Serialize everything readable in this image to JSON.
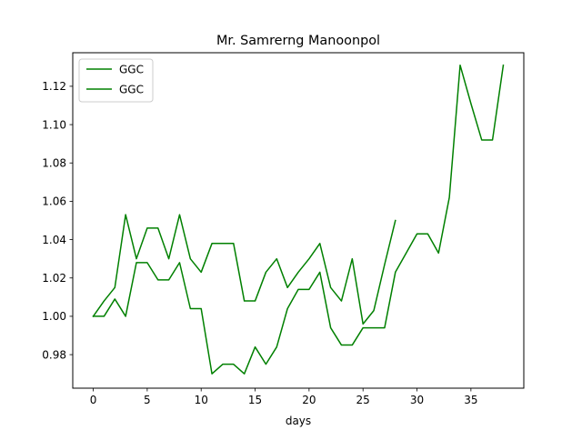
{
  "chart_data": {
    "type": "line",
    "title": "Mr. Samrerng Manoonpol",
    "xlabel": "days",
    "ylabel": "",
    "xlim": [
      -1.9,
      39.9
    ],
    "ylim": [
      0.9625,
      1.1375
    ],
    "xticks": [
      0,
      5,
      10,
      15,
      20,
      25,
      30,
      35
    ],
    "xtick_labels": [
      "0",
      "5",
      "10",
      "15",
      "20",
      "25",
      "30",
      "35"
    ],
    "yticks": [
      0.98,
      1.0,
      1.02,
      1.04,
      1.06,
      1.08,
      1.1,
      1.12
    ],
    "ytick_labels": [
      "0.98",
      "1.00",
      "1.02",
      "1.04",
      "1.06",
      "1.08",
      "1.10",
      "1.12"
    ],
    "grid": false,
    "legend_position": "upper left",
    "series": [
      {
        "name": "GGC",
        "color": "#008000",
        "x": [
          0,
          1,
          2,
          3,
          4,
          5,
          6,
          7,
          8,
          9,
          10,
          11,
          12,
          13,
          14,
          15,
          16,
          17,
          18,
          19,
          20,
          21,
          22,
          23,
          24,
          25,
          26,
          27,
          28
        ],
        "y": [
          1.0,
          1.008,
          1.015,
          1.053,
          1.03,
          1.046,
          1.046,
          1.03,
          1.053,
          1.03,
          1.023,
          1.038,
          1.038,
          1.038,
          1.008,
          1.008,
          1.023,
          1.03,
          1.015,
          1.023,
          1.03,
          1.038,
          1.015,
          1.008,
          1.03,
          0.996,
          1.003,
          1.027,
          1.05
        ]
      },
      {
        "name": "GGC",
        "color": "#008000",
        "x": [
          0,
          1,
          2,
          3,
          4,
          5,
          6,
          7,
          8,
          9,
          10,
          11,
          12,
          13,
          14,
          15,
          16,
          17,
          18,
          19,
          20,
          21,
          22,
          23,
          24,
          25,
          26,
          27,
          28,
          29,
          30,
          31,
          32,
          33,
          34,
          35,
          36,
          37,
          38
        ],
        "y": [
          1.0,
          1.0,
          1.009,
          1.0,
          1.028,
          1.028,
          1.019,
          1.019,
          1.028,
          1.004,
          1.004,
          0.97,
          0.975,
          0.975,
          0.97,
          0.984,
          0.975,
          0.984,
          1.004,
          1.014,
          1.014,
          1.023,
          0.994,
          0.985,
          0.985,
          0.994,
          0.994,
          0.994,
          1.023,
          1.033,
          1.043,
          1.043,
          1.033,
          1.062,
          1.131,
          1.111,
          1.092,
          1.092,
          1.131
        ]
      }
    ]
  }
}
